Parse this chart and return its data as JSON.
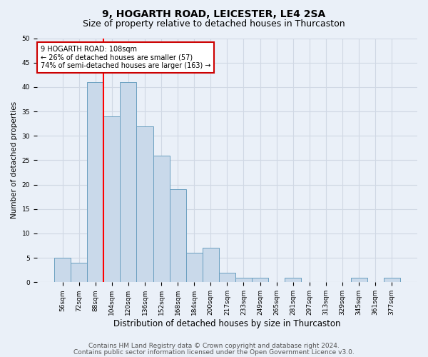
{
  "title": "9, HOGARTH ROAD, LEICESTER, LE4 2SA",
  "subtitle": "Size of property relative to detached houses in Thurcaston",
  "xlabel": "Distribution of detached houses by size in Thurcaston",
  "ylabel": "Number of detached properties",
  "categories": [
    "56sqm",
    "72sqm",
    "88sqm",
    "104sqm",
    "120sqm",
    "136sqm",
    "152sqm",
    "168sqm",
    "184sqm",
    "200sqm",
    "217sqm",
    "233sqm",
    "249sqm",
    "265sqm",
    "281sqm",
    "297sqm",
    "313sqm",
    "329sqm",
    "345sqm",
    "361sqm",
    "377sqm"
  ],
  "values": [
    5,
    4,
    41,
    34,
    41,
    32,
    26,
    19,
    6,
    7,
    2,
    1,
    1,
    0,
    1,
    0,
    0,
    0,
    1,
    0,
    1
  ],
  "bar_color": "#c9d9ea",
  "bar_edge_color": "#6a9fc0",
  "grid_color": "#d0d8e4",
  "background_color": "#eaf0f8",
  "red_line_x": 3.0,
  "annotation_text": "9 HOGARTH ROAD: 108sqm\n← 26% of detached houses are smaller (57)\n74% of semi-detached houses are larger (163) →",
  "annotation_box_color": "#ffffff",
  "annotation_box_edge_color": "#cc0000",
  "ylim": [
    0,
    50
  ],
  "yticks": [
    0,
    5,
    10,
    15,
    20,
    25,
    30,
    35,
    40,
    45,
    50
  ],
  "footer1": "Contains HM Land Registry data © Crown copyright and database right 2024.",
  "footer2": "Contains public sector information licensed under the Open Government Licence v3.0.",
  "title_fontsize": 10,
  "subtitle_fontsize": 9,
  "xlabel_fontsize": 8.5,
  "ylabel_fontsize": 7.5,
  "tick_fontsize": 6.5,
  "annotation_fontsize": 7,
  "footer_fontsize": 6.5
}
